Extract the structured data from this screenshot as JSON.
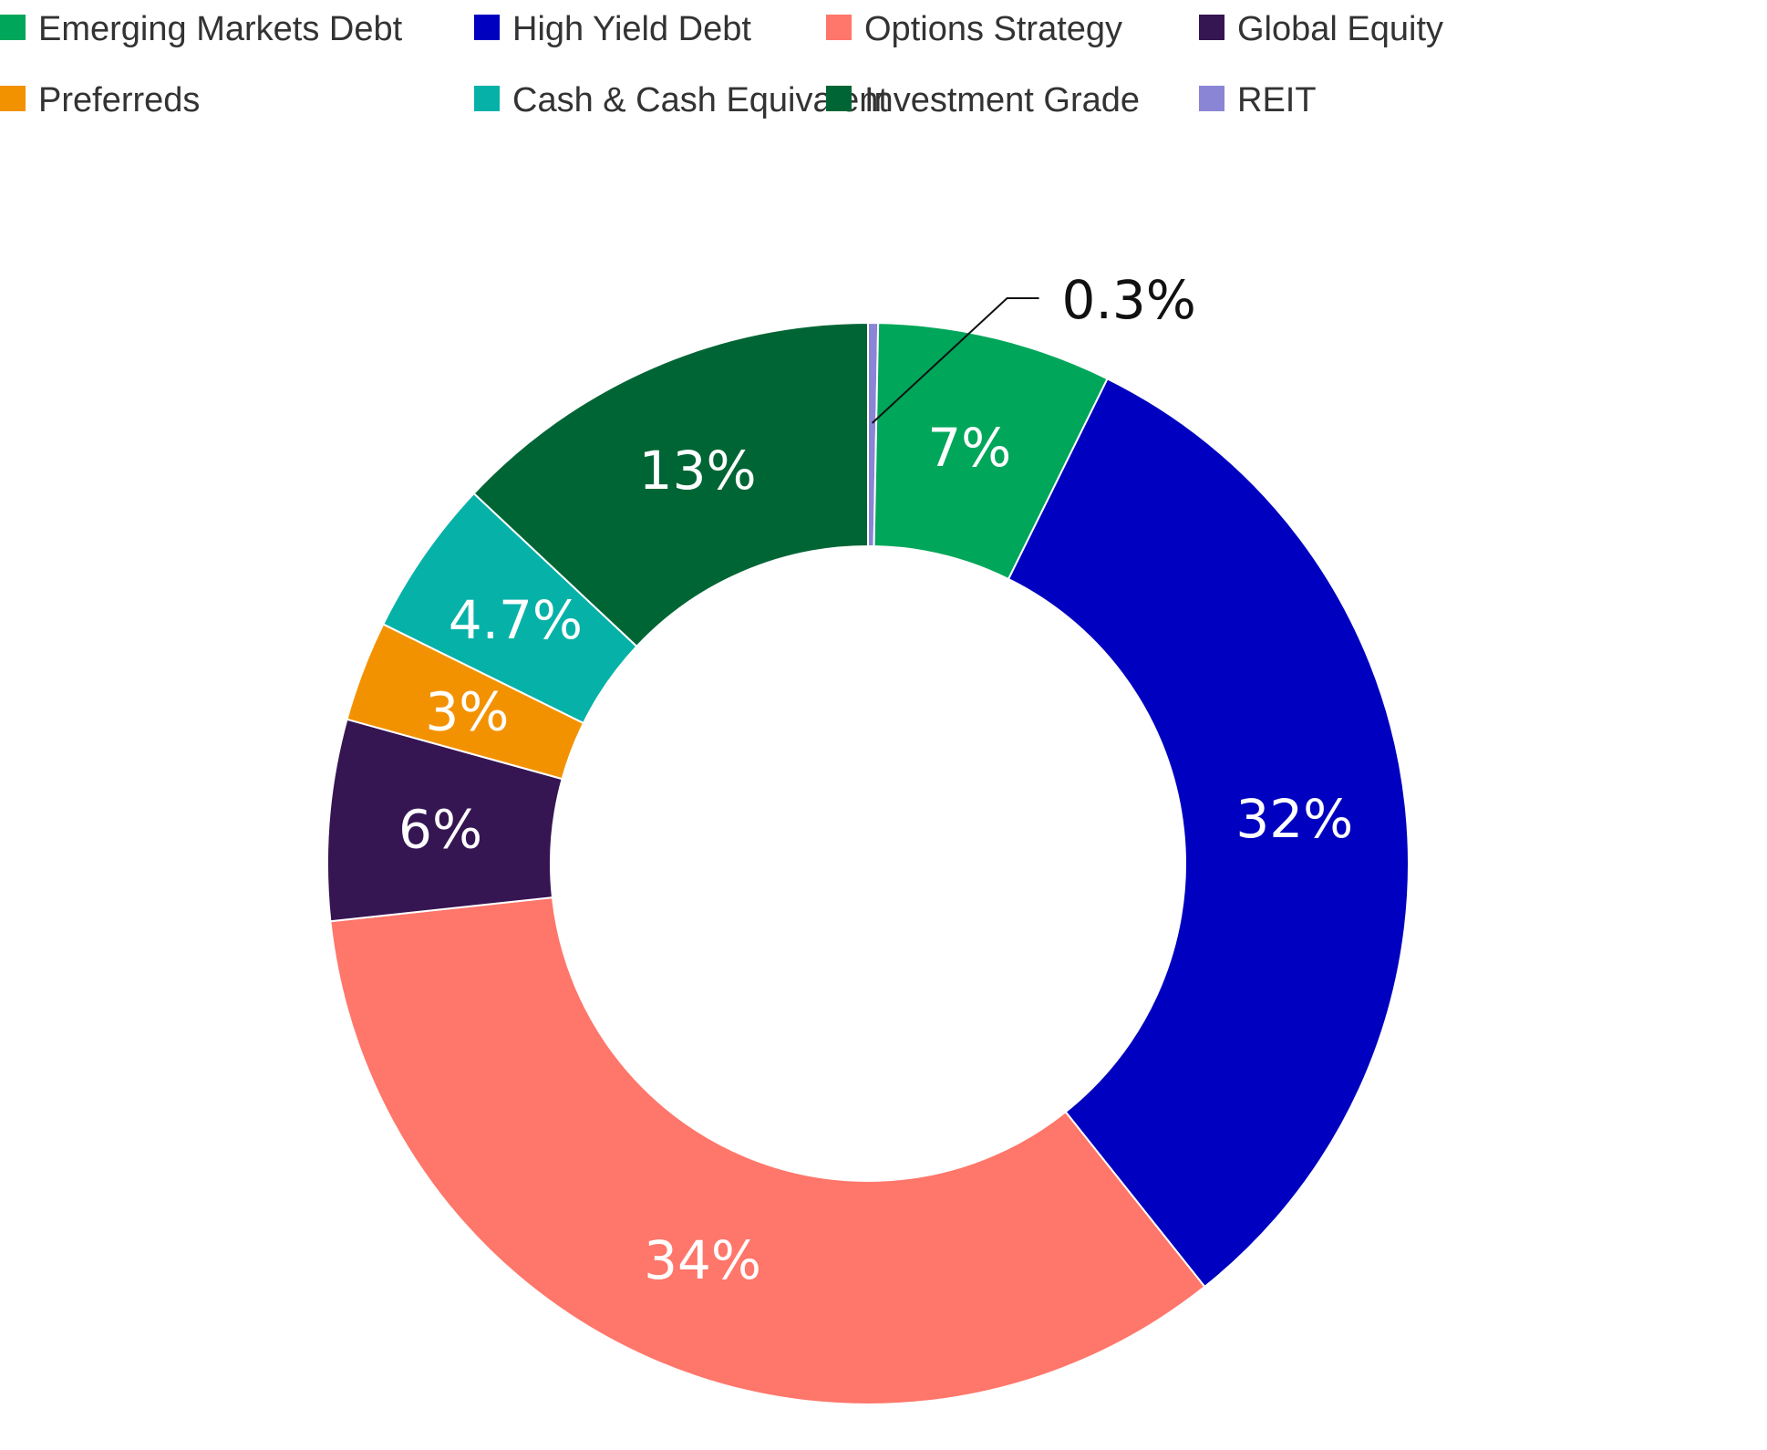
{
  "chart_data": {
    "type": "pie",
    "donut": true,
    "legend_position": "top-left",
    "categories": [
      "REIT",
      "Emerging Markets Debt",
      "High Yield Debt",
      "Options Strategy",
      "Global Equity",
      "Preferreds",
      "Cash & Cash Equivalent",
      "Investment Grade"
    ],
    "values": [
      0.3,
      7,
      32,
      34,
      6,
      3,
      4.7,
      13
    ],
    "data_labels": [
      "0.3%",
      "7%",
      "32%",
      "34%",
      "6%",
      "3%",
      "4.7%",
      "13%"
    ],
    "colors": [
      "#8B85D6",
      "#00A65A",
      "#0000C0",
      "#FF766A",
      "#361553",
      "#F39200",
      "#06B2A8",
      "#006535"
    ],
    "legend": [
      {
        "label": "Emerging Markets Debt",
        "color": "#00A65A"
      },
      {
        "label": "High Yield Debt",
        "color": "#0000C0"
      },
      {
        "label": "Options Strategy",
        "color": "#FF766A"
      },
      {
        "label": "Global Equity",
        "color": "#361553"
      },
      {
        "label": "Preferreds",
        "color": "#F39200"
      },
      {
        "label": "Cash & Cash Equivalent",
        "color": "#06B2A8"
      },
      {
        "label": "Investment Grade",
        "color": "#006535"
      },
      {
        "label": "REIT",
        "color": "#8B85D6"
      }
    ]
  }
}
